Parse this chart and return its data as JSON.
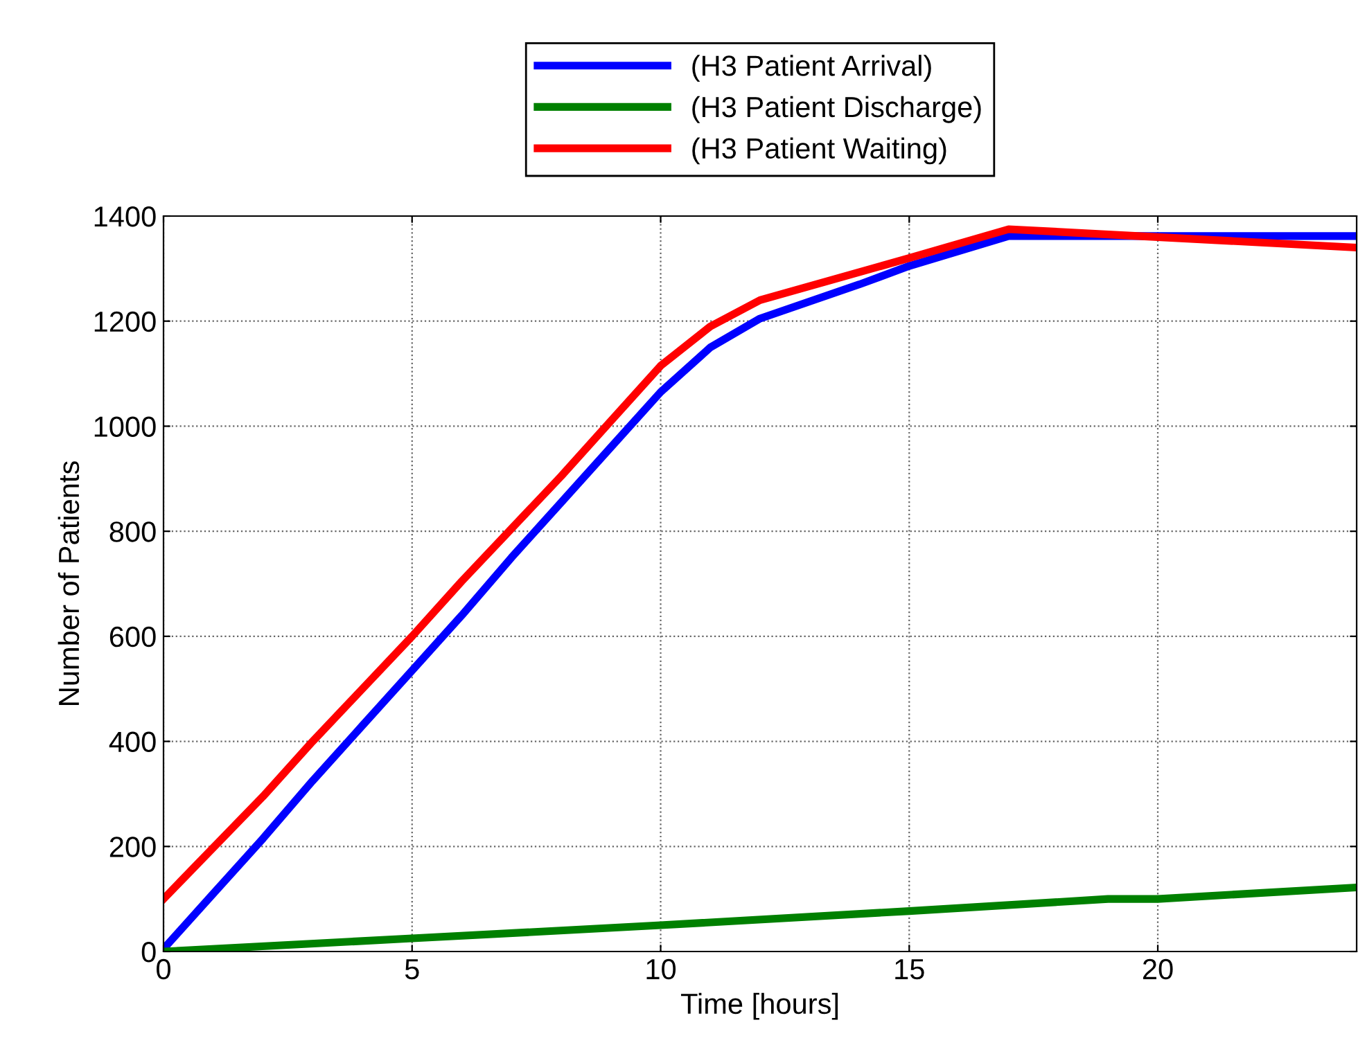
{
  "chart_data": {
    "type": "line",
    "xlabel": "Time [hours]",
    "ylabel": "Number of Patients",
    "xlim": [
      0,
      24
    ],
    "xticks": [
      0,
      5,
      10,
      15,
      20
    ],
    "ylim": [
      0,
      1400
    ],
    "yticks": [
      0,
      200,
      400,
      600,
      800,
      1000,
      1200,
      1400
    ],
    "grid": true,
    "legend": "top",
    "line_style": "solid",
    "marker": "none",
    "series": [
      {
        "name": "(H3 Patient Arrival)",
        "color": "#0000ff",
        "x": [
          0,
          1,
          2,
          3,
          4,
          5,
          6,
          7,
          8,
          9,
          10,
          11,
          12,
          14,
          15,
          17,
          24
        ],
        "values": [
          5,
          110,
          215,
          325,
          430,
          535,
          640,
          750,
          855,
          960,
          1065,
          1150,
          1205,
          1270,
          1305,
          1362,
          1362
        ]
      },
      {
        "name": "(H3 Patient Discharge)",
        "color": "#008000",
        "x": [
          0,
          5,
          10,
          15,
          19,
          20,
          24
        ],
        "values": [
          0,
          25,
          50,
          77,
          100,
          100,
          122
        ]
      },
      {
        "name": "(H3 Patient Waiting)",
        "color": "#ff0000",
        "x": [
          0,
          2,
          3,
          4,
          5,
          6,
          7,
          8,
          9,
          10,
          11,
          12,
          15,
          17,
          20,
          24
        ],
        "values": [
          100,
          295,
          400,
          500,
          600,
          705,
          805,
          905,
          1010,
          1115,
          1190,
          1240,
          1320,
          1375,
          1360,
          1340
        ]
      }
    ]
  }
}
